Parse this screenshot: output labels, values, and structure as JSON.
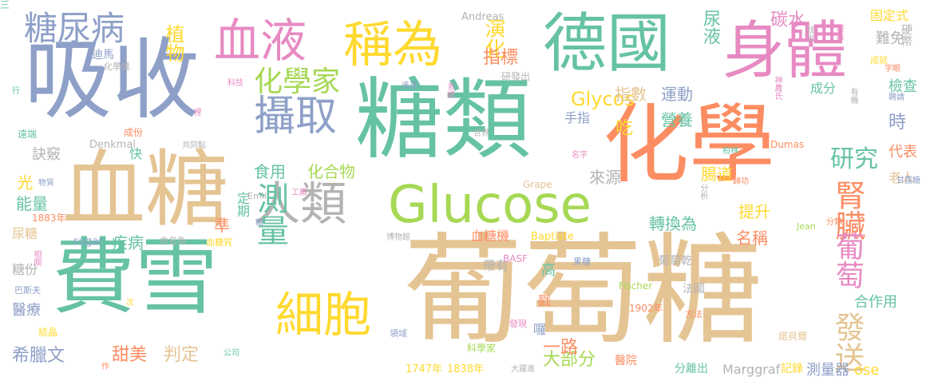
{
  "colors": {
    "blue": "#8ea0c8",
    "green": "#66c2a5",
    "tan": "#e5c494",
    "orange": "#fc8d62",
    "pink": "#e78ac3",
    "lime": "#a6d854",
    "yellow": "#ffd92f",
    "gray": "#b3b3b3"
  },
  "words": [
    {
      "text": "葡萄糖",
      "color": "tan"
    },
    {
      "text": "糖類",
      "color": "green"
    },
    {
      "text": "費雪",
      "color": "green"
    },
    {
      "text": "化學",
      "color": "orange"
    },
    {
      "text": "吸收",
      "color": "blue"
    },
    {
      "text": "血糖",
      "color": "tan"
    },
    {
      "text": "身體",
      "color": "pink"
    },
    {
      "text": "德國",
      "color": "green"
    },
    {
      "text": "Glucose",
      "color": "lime"
    },
    {
      "text": "人類",
      "color": "gray"
    },
    {
      "text": "血液",
      "color": "pink"
    },
    {
      "text": "稱為",
      "color": "yellow"
    },
    {
      "text": "攝取",
      "color": "blue"
    },
    {
      "text": "測量",
      "color": "green"
    },
    {
      "text": "細胞",
      "color": "yellow"
    },
    {
      "text": "糖尿病",
      "color": "blue"
    },
    {
      "text": "化學家",
      "color": "lime"
    },
    {
      "text": "發送",
      "color": "tan"
    },
    {
      "text": "腎臟",
      "color": "orange"
    },
    {
      "text": "葡萄",
      "color": "pink"
    },
    {
      "text": "研究",
      "color": "green"
    },
    {
      "text": "植物",
      "color": "yellow"
    },
    {
      "text": "演化",
      "color": "yellow"
    },
    {
      "text": "指標",
      "color": "orange"
    },
    {
      "text": "尿液",
      "color": "green"
    },
    {
      "text": "碳水",
      "color": "pink"
    },
    {
      "text": "固定式",
      "color": "yellow"
    },
    {
      "text": "難免",
      "color": "gray"
    },
    {
      "text": "硬幣",
      "color": "gray"
    },
    {
      "text": "Andreas",
      "color": "gray"
    },
    {
      "text": "迪馬",
      "color": "blue"
    },
    {
      "text": "化學獎",
      "color": "gray"
    },
    {
      "text": "Glycos",
      "color": "yellow"
    },
    {
      "text": "指數",
      "color": "tan"
    },
    {
      "text": "運動",
      "color": "blue"
    },
    {
      "text": "營養",
      "color": "green"
    },
    {
      "text": "時",
      "color": "blue"
    },
    {
      "text": "吃",
      "color": "yellow"
    },
    {
      "text": "手指",
      "color": "blue"
    },
    {
      "text": "代表",
      "color": "orange"
    },
    {
      "text": "食用",
      "color": "green"
    },
    {
      "text": "化合物",
      "color": "lime"
    },
    {
      "text": "來源",
      "color": "gray"
    },
    {
      "text": "腸道",
      "color": "yellow"
    },
    {
      "text": "訣竅",
      "color": "gray"
    },
    {
      "text": "快",
      "color": "green"
    },
    {
      "text": "光",
      "color": "yellow"
    },
    {
      "text": "能量",
      "color": "green"
    },
    {
      "text": "尿糖",
      "color": "tan"
    },
    {
      "text": "糖份",
      "color": "gray"
    },
    {
      "text": "醫療",
      "color": "blue"
    },
    {
      "text": "希臘文",
      "color": "blue"
    },
    {
      "text": "甜美",
      "color": "orange"
    },
    {
      "text": "判定",
      "color": "tan"
    },
    {
      "text": "大部分",
      "color": "lime"
    },
    {
      "text": "一路",
      "color": "orange"
    },
    {
      "text": "ose",
      "color": "yellow"
    },
    {
      "text": "合作用",
      "color": "green"
    },
    {
      "text": "老人",
      "color": "tan"
    },
    {
      "text": "轉換為",
      "color": "green"
    },
    {
      "text": "名稱",
      "color": "orange"
    },
    {
      "text": "提升",
      "color": "yellow"
    },
    {
      "text": "疾病",
      "color": "green"
    },
    {
      "text": "定期",
      "color": "green"
    },
    {
      "text": "準",
      "color": "orange"
    },
    {
      "text": "高",
      "color": "green"
    },
    {
      "text": "戳",
      "color": "orange"
    },
    {
      "text": "囉",
      "color": "blue"
    },
    {
      "text": "帶有",
      "color": "gray"
    },
    {
      "text": "血糖機",
      "color": "orange"
    },
    {
      "text": "葡萄乾",
      "color": "gray"
    },
    {
      "text": "法國",
      "color": "gray"
    },
    {
      "text": "檢查",
      "color": "green"
    },
    {
      "text": "成分",
      "color": "green"
    },
    {
      "text": "sugar",
      "color": "blue"
    },
    {
      "text": "Fischer",
      "color": "lime"
    },
    {
      "text": "Dumas",
      "color": "orange"
    },
    {
      "text": "Grape",
      "color": "tan"
    },
    {
      "text": "Emil",
      "color": "gray"
    },
    {
      "text": "Jean",
      "color": "lime"
    },
    {
      "text": "Baptiste",
      "color": "yellow"
    },
    {
      "text": "BASF",
      "color": "pink"
    },
    {
      "text": "Marggraf",
      "color": "gray"
    },
    {
      "text": "Denkmal",
      "color": "gray"
    },
    {
      "text": "1747年",
      "color": "yellow"
    },
    {
      "text": "1838年",
      "color": "yellow"
    },
    {
      "text": "1902年",
      "color": "orange"
    },
    {
      "text": "1883年",
      "color": "orange"
    },
    {
      "text": "測量器",
      "color": "blue"
    },
    {
      "text": "記錄",
      "color": "yellow"
    },
    {
      "text": "分離出",
      "color": "green"
    },
    {
      "text": "醫院",
      "color": "orange"
    },
    {
      "text": "大躍進",
      "color": "gray"
    },
    {
      "text": "科學家",
      "color": "lime"
    },
    {
      "text": "諾貝爾",
      "color": "tan"
    },
    {
      "text": "方法",
      "color": "orange"
    },
    {
      "text": "發現",
      "color": "pink"
    },
    {
      "text": "領域",
      "color": "blue"
    },
    {
      "text": "公司",
      "color": "green"
    },
    {
      "text": "結晶",
      "color": "yellow"
    },
    {
      "text": "巴斯夫",
      "color": "blue"
    },
    {
      "text": "相關",
      "color": "pink"
    },
    {
      "text": "物質",
      "color": "blue"
    },
    {
      "text": "遠端",
      "color": "green"
    },
    {
      "text": "行",
      "color": "green"
    },
    {
      "text": "成份",
      "color": "orange"
    },
    {
      "text": "裡",
      "color": "pink"
    },
    {
      "text": "科技",
      "color": "pink"
    },
    {
      "text": "共同點",
      "color": "gray"
    },
    {
      "text": "命名為",
      "color": "gray"
    },
    {
      "text": "血糖質",
      "color": "yellow"
    },
    {
      "text": "糖",
      "color": "blue"
    },
    {
      "text": "博物館",
      "color": "gray"
    },
    {
      "text": "工廠",
      "color": "pink"
    },
    {
      "text": "名字",
      "color": "pink"
    },
    {
      "text": "世界",
      "color": "gray"
    },
    {
      "text": "遙遠",
      "color": "blue"
    },
    {
      "text": "系統",
      "color": "pink"
    },
    {
      "text": "研發出",
      "color": "gray"
    },
    {
      "text": "找出",
      "color": "gray"
    },
    {
      "text": "製造",
      "color": "pink"
    },
    {
      "text": "成就",
      "color": "yellow"
    },
    {
      "text": "字眼",
      "color": "orange"
    },
    {
      "text": "神農氏",
      "color": "pink"
    },
    {
      "text": "有機",
      "color": "gray"
    },
    {
      "text": "聘請",
      "color": "blue"
    },
    {
      "text": "柏林",
      "color": "green"
    },
    {
      "text": "分析",
      "color": "gray"
    },
    {
      "text": "歸功",
      "color": "orange"
    },
    {
      "text": "甘露糖",
      "color": "blue"
    },
    {
      "text": "分類",
      "color": "orange"
    },
    {
      "text": "果糖",
      "color": "blue"
    },
    {
      "text": "次",
      "color": "yellow"
    },
    {
      "text": "作",
      "color": "orange"
    },
    {
      "text": "三",
      "color": "green"
    }
  ]
}
